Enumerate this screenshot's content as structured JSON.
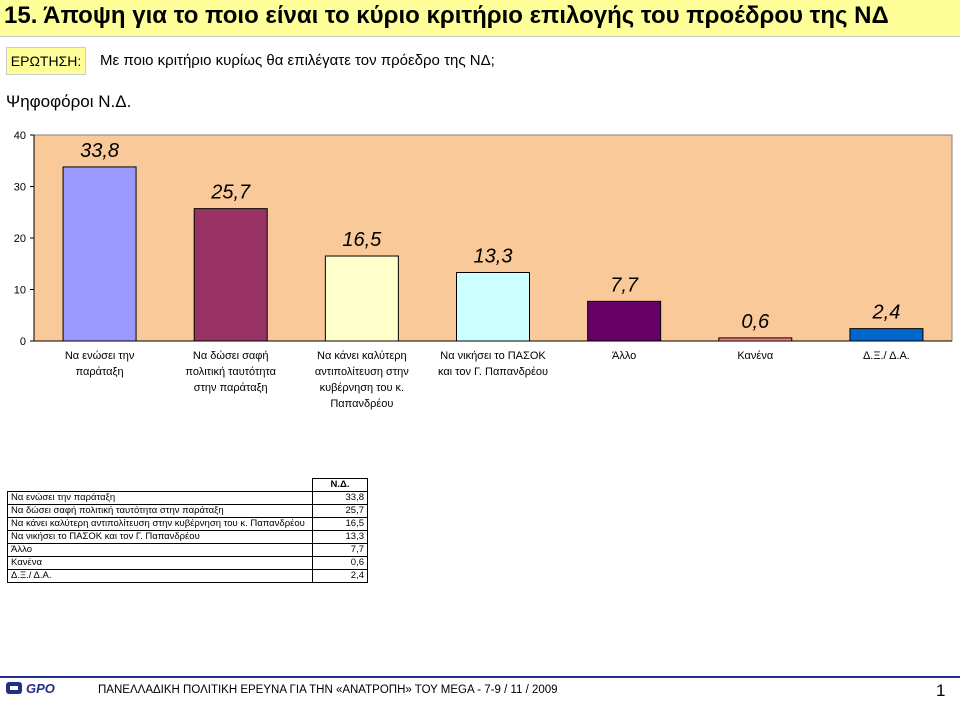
{
  "header": {
    "title": "15.  Άποψη για το ποιο είναι το κύριο κριτήριο επιλογής του προέδρου της ΝΔ",
    "question_label": "ΕΡΩΤΗΣΗ:",
    "question_text": "Με ποιο κριτήριο κυρίως θα επιλέγατε τον πρόεδρο της ΝΔ;",
    "subtitle": "Ψηφοφόροι Ν.Δ."
  },
  "chart_data": {
    "type": "bar",
    "title": "Ψηφοφόροι Ν.Δ.",
    "series": [
      {
        "name": "Ν.Δ.",
        "values": [
          33.8,
          25.7,
          16.5,
          13.3,
          7.7,
          0.6,
          2.4
        ]
      }
    ],
    "categories": [
      "Να ενώσει την παράταξη",
      "Να δώσει σαφή πολιτική ταυτότητα στην παράταξη",
      "Να κάνει καλύτερη αντιπολίτευση στην κυβέρνηση του κ. Παπανδρέου",
      "Να νικήσει το ΠΑΣΟΚ και τον Γ. Παπανδρέου",
      "Άλλο",
      "Κανένα",
      "Δ.Ξ./ Δ.Α."
    ],
    "category_lines": [
      [
        "Να ενώσει την",
        "παράταξη"
      ],
      [
        "Να δώσει σαφή",
        "πολιτική ταυτότητα",
        "στην παράταξη"
      ],
      [
        "Να κάνει καλύτερη",
        "αντιπολίτευση στην",
        "κυβέρνηση του κ.",
        "Παπανδρέου"
      ],
      [
        "Να νικήσει το ΠΑΣΟΚ",
        "και τον Γ. Παπανδρέου"
      ],
      [
        "Άλλο"
      ],
      [
        "Κανένα"
      ],
      [
        "Δ.Ξ./ Δ.Α."
      ]
    ],
    "value_labels": [
      "33,8",
      "25,7",
      "16,5",
      "13,3",
      "7,7",
      "0,6",
      "2,4"
    ],
    "colors": [
      "#9999ff",
      "#993366",
      "#ffffcc",
      "#ccffff",
      "#660066",
      "#ff8080",
      "#0066cc"
    ],
    "plot_bg": "#f9c99a",
    "ylim": [
      0,
      40
    ],
    "yticks": [
      0,
      10,
      20,
      30,
      40
    ],
    "xlabel": "",
    "ylabel": "",
    "grid": false,
    "legend": "none"
  },
  "table": {
    "column_header": "Ν.Δ.",
    "rows": [
      {
        "label": "Να ενώσει την παράταξη",
        "value": "33,8"
      },
      {
        "label": "Να δώσει σαφή πολιτική ταυτότητα στην παράταξη",
        "value": "25,7"
      },
      {
        "label": "Να κάνει καλύτερη αντιπολίτευση στην κυβέρνηση του κ. Παπανδρέου",
        "value": "16,5"
      },
      {
        "label": "Να νικήσει το ΠΑΣΟΚ και τον Γ. Παπανδρέου",
        "value": "13,3"
      },
      {
        "label": "Άλλο",
        "value": "7,7"
      },
      {
        "label": "Κανένα",
        "value": "0,6"
      },
      {
        "label": "Δ.Ξ./ Δ.Α.",
        "value": "2,4"
      }
    ]
  },
  "footer": {
    "logo_text": "GPO",
    "text": "ΠΑΝΕΛΛΑΔΙΚΗ ΠΟΛΙΤΙΚΗ ΕΡΕΥΝΑ ΓΙΑ ΤΗΝ «ΑΝΑΤΡΟΠΗ» ΤΟΥ MEGA   -  7-9  / 11 / 2009",
    "page_number": "1",
    "line_color": "#1f2f8a"
  }
}
